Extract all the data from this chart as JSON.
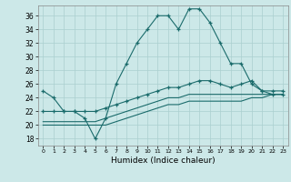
{
  "title": "",
  "xlabel": "Humidex (Indice chaleur)",
  "ylabel": "",
  "background_color": "#cce8e8",
  "grid_color": "#aacfcf",
  "line_color": "#1a6b6b",
  "xlim": [
    -0.5,
    23.5
  ],
  "ylim": [
    17,
    37.5
  ],
  "yticks": [
    18,
    20,
    22,
    24,
    26,
    28,
    30,
    32,
    34,
    36
  ],
  "xticks": [
    0,
    1,
    2,
    3,
    4,
    5,
    6,
    7,
    8,
    9,
    10,
    11,
    12,
    13,
    14,
    15,
    16,
    17,
    18,
    19,
    20,
    21,
    22,
    23
  ],
  "lines": [
    {
      "x": [
        0,
        1,
        2,
        3,
        4,
        5,
        6,
        7,
        8,
        9,
        10,
        11,
        12,
        13,
        14,
        15,
        16,
        17,
        18,
        19,
        20,
        21,
        22,
        23
      ],
      "y": [
        25,
        24,
        22,
        22,
        21,
        18,
        21,
        26,
        29,
        32,
        34,
        36,
        36,
        34,
        37,
        37,
        35,
        32,
        29,
        29,
        26,
        25,
        25,
        25
      ],
      "marker": "+"
    },
    {
      "x": [
        0,
        1,
        2,
        3,
        4,
        5,
        6,
        7,
        8,
        9,
        10,
        11,
        12,
        13,
        14,
        15,
        16,
        17,
        18,
        19,
        20,
        21,
        22,
        23
      ],
      "y": [
        22,
        22,
        22,
        22,
        22,
        22,
        22.5,
        23,
        23.5,
        24,
        24.5,
        25,
        25.5,
        25.5,
        26,
        26.5,
        26.5,
        26,
        25.5,
        26,
        26.5,
        25,
        24.5,
        24.5
      ],
      "marker": "+"
    },
    {
      "x": [
        0,
        1,
        2,
        3,
        4,
        5,
        6,
        7,
        8,
        9,
        10,
        11,
        12,
        13,
        14,
        15,
        16,
        17,
        18,
        19,
        20,
        21,
        22,
        23
      ],
      "y": [
        20.5,
        20.5,
        20.5,
        20.5,
        20.5,
        20.5,
        21,
        21.5,
        22,
        22.5,
        23,
        23.5,
        24,
        24,
        24.5,
        24.5,
        24.5,
        24.5,
        24.5,
        24.5,
        24.5,
        24.5,
        24.5,
        24.5
      ],
      "marker": null
    },
    {
      "x": [
        0,
        1,
        2,
        3,
        4,
        5,
        6,
        7,
        8,
        9,
        10,
        11,
        12,
        13,
        14,
        15,
        16,
        17,
        18,
        19,
        20,
        21,
        22,
        23
      ],
      "y": [
        20,
        20,
        20,
        20,
        20,
        20,
        20,
        20.5,
        21,
        21.5,
        22,
        22.5,
        23,
        23,
        23.5,
        23.5,
        23.5,
        23.5,
        23.5,
        23.5,
        24,
        24,
        24.5,
        24.5
      ],
      "marker": null
    }
  ]
}
